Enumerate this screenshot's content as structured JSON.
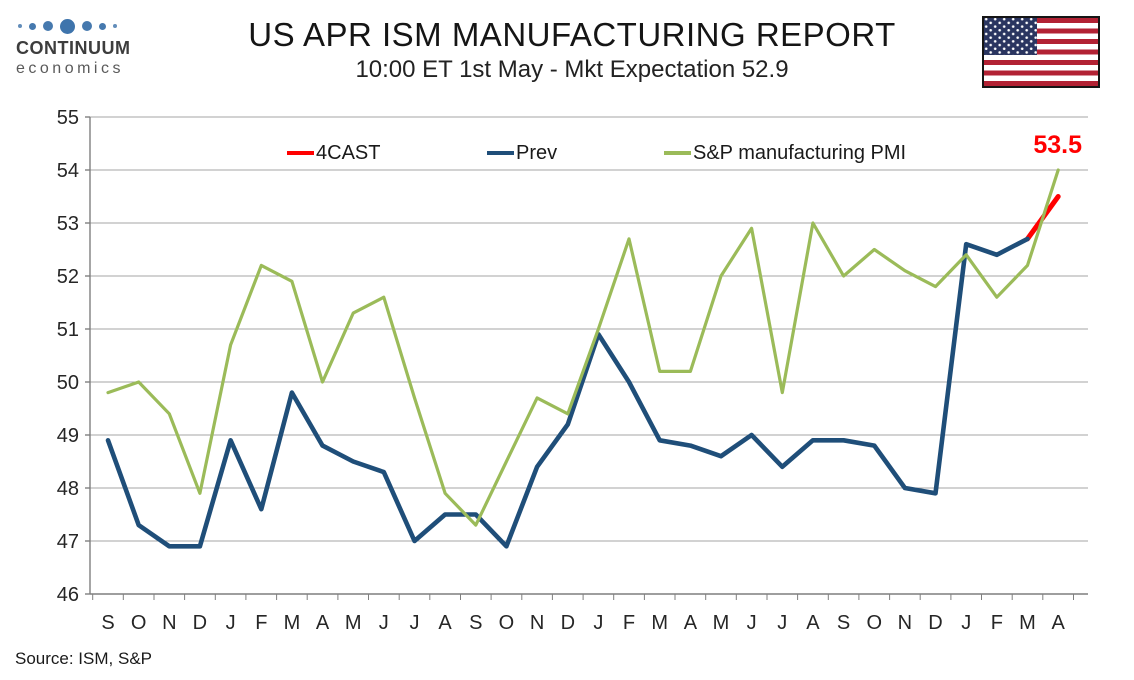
{
  "header": {
    "logo_brand": "CONTINUUM",
    "logo_sub": "economics",
    "flag": "US"
  },
  "source_note": "Source: ISM, S&P",
  "chart_data": {
    "type": "line",
    "title": "US APR ISM MANUFACTURING REPORT",
    "subtitle": "10:00 ET 1st May - Mkt Expectation 52.9",
    "xlabel": "",
    "ylabel": "",
    "ylim": [
      46,
      55
    ],
    "ytick_step": 1,
    "grid": true,
    "legend_position": "top-inside",
    "annotation": {
      "text": "53.5",
      "color": "#FF0000"
    },
    "x_labels": [
      "S",
      "O",
      "N",
      "D",
      "J",
      "F",
      "M",
      "A",
      "M",
      "J",
      "J",
      "A",
      "S",
      "O",
      "N",
      "D",
      "J",
      "F",
      "M",
      "A",
      "M",
      "J",
      "J",
      "A",
      "S",
      "O",
      "N",
      "D",
      "J",
      "F",
      "M",
      "A"
    ],
    "series": [
      {
        "name": "4CAST",
        "color": "#FF0000",
        "width": 5,
        "values": [
          null,
          null,
          null,
          null,
          null,
          null,
          null,
          null,
          null,
          null,
          null,
          null,
          null,
          null,
          null,
          null,
          null,
          null,
          null,
          null,
          null,
          null,
          null,
          null,
          null,
          null,
          null,
          null,
          null,
          null,
          52.7,
          53.5
        ]
      },
      {
        "name": "Prev",
        "color": "#1F4E79",
        "width": 4.6,
        "values": [
          48.9,
          47.3,
          46.9,
          46.9,
          48.9,
          47.6,
          49.8,
          48.8,
          48.5,
          48.3,
          47.0,
          47.5,
          47.5,
          46.9,
          48.4,
          49.2,
          50.9,
          50.0,
          48.9,
          48.8,
          48.6,
          49.0,
          48.4,
          48.9,
          48.9,
          48.8,
          48.0,
          47.9,
          52.6,
          52.4,
          52.7,
          null
        ]
      },
      {
        "name": "S&P manufacturing PMI",
        "color": "#9BBB59",
        "width": 3.2,
        "values": [
          49.8,
          50.0,
          49.4,
          47.9,
          50.7,
          52.2,
          51.9,
          50.0,
          51.3,
          51.6,
          49.7,
          47.9,
          47.3,
          48.5,
          49.7,
          49.4,
          51.0,
          52.7,
          50.2,
          50.2,
          52.0,
          52.9,
          49.8,
          53.0,
          52.0,
          52.5,
          52.1,
          51.8,
          52.4,
          51.6,
          52.2,
          54.0
        ]
      }
    ]
  }
}
